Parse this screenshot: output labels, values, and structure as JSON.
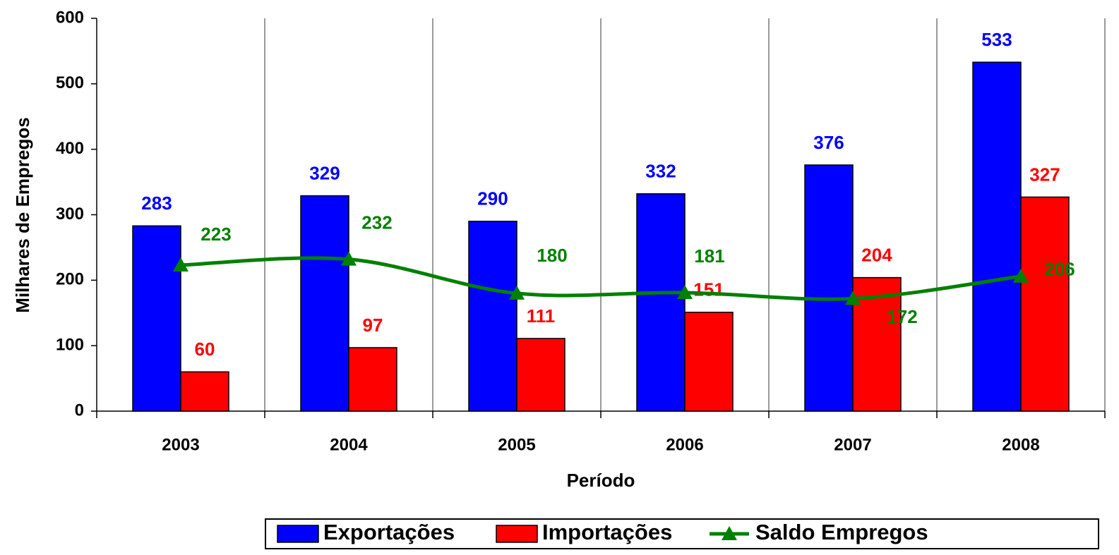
{
  "chart_data": {
    "type": "bar",
    "x_label": "Período",
    "y_label": "Milhares de Empregos",
    "categories": [
      "2003",
      "2004",
      "2005",
      "2006",
      "2007",
      "2008"
    ],
    "series": [
      {
        "name": "Exportações",
        "color": "#0000ff",
        "type": "bar",
        "values": [
          283,
          329,
          290,
          332,
          376,
          533
        ]
      },
      {
        "name": "Importações",
        "color": "#ff0000",
        "type": "bar",
        "values": [
          60,
          97,
          111,
          151,
          204,
          327
        ]
      },
      {
        "name": "Saldo Empregos",
        "color": "#008000",
        "type": "line",
        "values": [
          223,
          232,
          180,
          181,
          172,
          206
        ]
      }
    ],
    "ylim": [
      0,
      600
    ],
    "yticks": [
      0,
      100,
      200,
      300,
      400,
      500,
      600
    ],
    "grid": "vertical",
    "legend": "bottom"
  }
}
